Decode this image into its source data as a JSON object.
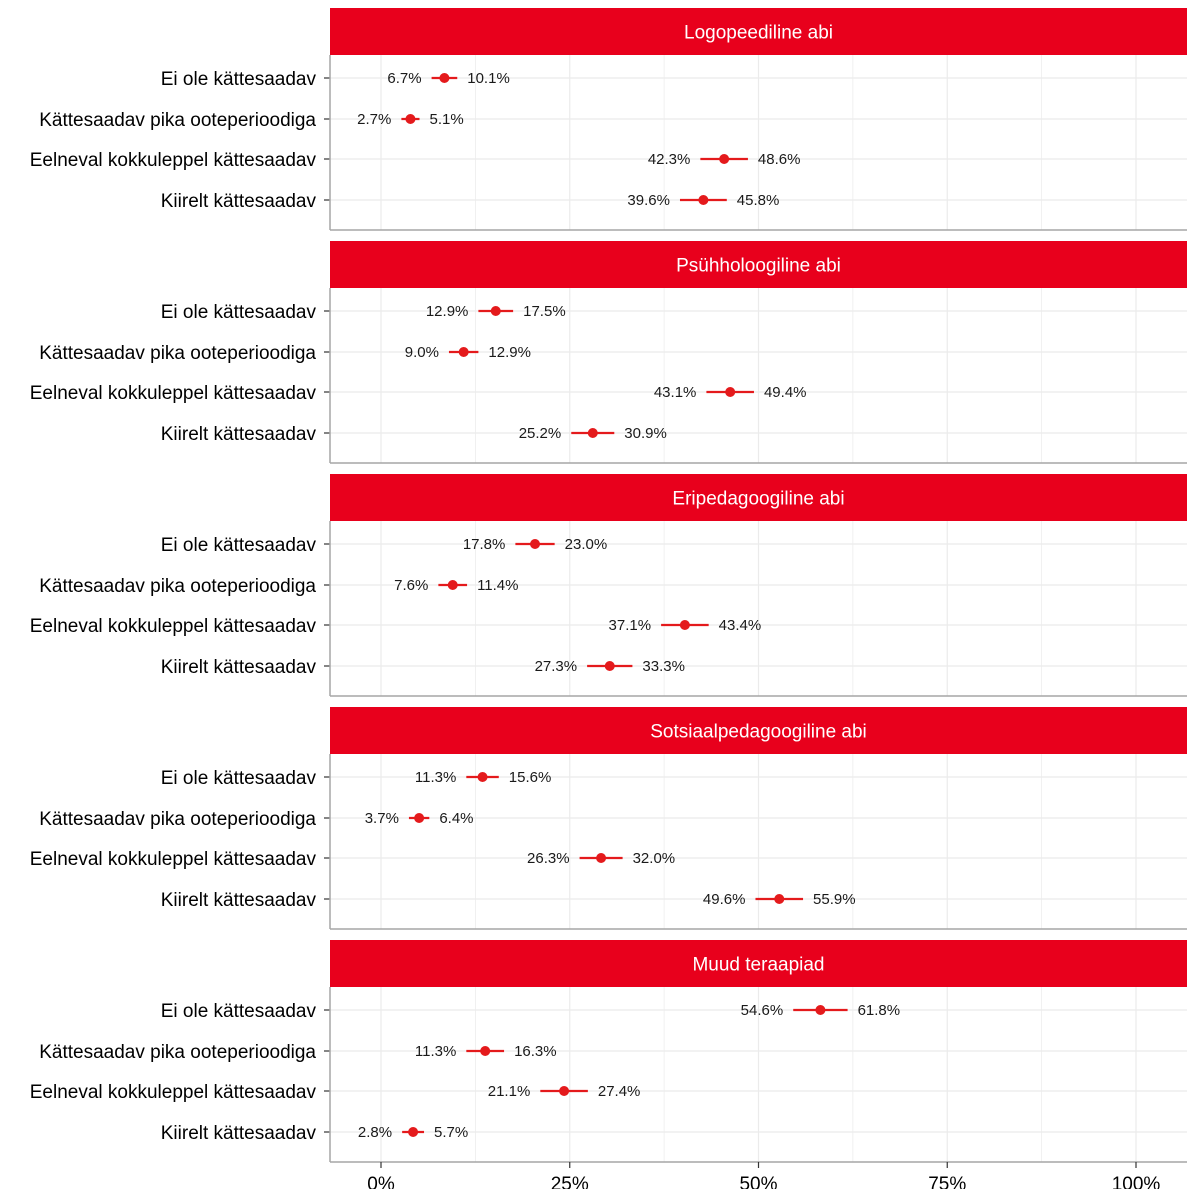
{
  "colors": {
    "strip": "#e8001c",
    "point": "#e41a1c",
    "grid": "#ebebeb",
    "panel_border": "#a6a6a6",
    "axis": "#333333"
  },
  "chart_data": {
    "type": "dot-interval",
    "categories": [
      "Ei ole kättesaadav",
      "Kättesaadav pika ooteperioodiga",
      "Eelneval kokkuleppel kättesaadav",
      "Kiirelt kättesaadav"
    ],
    "xlim": [
      0,
      100
    ],
    "xticks": [
      0,
      25,
      50,
      75,
      100
    ],
    "xtick_labels": [
      "0%",
      "25%",
      "50%",
      "75%",
      "100%"
    ],
    "grid": true,
    "panels": [
      {
        "title": "Logopeediline abi",
        "values": [
          {
            "low": 6.7,
            "high": 10.1,
            "low_label": "6.7%",
            "high_label": "10.1%"
          },
          {
            "low": 2.7,
            "high": 5.1,
            "low_label": "2.7%",
            "high_label": "5.1%"
          },
          {
            "low": 42.3,
            "high": 48.6,
            "low_label": "42.3%",
            "high_label": "48.6%"
          },
          {
            "low": 39.6,
            "high": 45.8,
            "low_label": "39.6%",
            "high_label": "45.8%"
          }
        ]
      },
      {
        "title": "Psühholoogiline abi",
        "values": [
          {
            "low": 12.9,
            "high": 17.5,
            "low_label": "12.9%",
            "high_label": "17.5%"
          },
          {
            "low": 9.0,
            "high": 12.9,
            "low_label": "9.0%",
            "high_label": "12.9%"
          },
          {
            "low": 43.1,
            "high": 49.4,
            "low_label": "43.1%",
            "high_label": "49.4%"
          },
          {
            "low": 25.2,
            "high": 30.9,
            "low_label": "25.2%",
            "high_label": "30.9%"
          }
        ]
      },
      {
        "title": "Eripedagoogiline abi",
        "values": [
          {
            "low": 17.8,
            "high": 23.0,
            "low_label": "17.8%",
            "high_label": "23.0%"
          },
          {
            "low": 7.6,
            "high": 11.4,
            "low_label": "7.6%",
            "high_label": "11.4%"
          },
          {
            "low": 37.1,
            "high": 43.4,
            "low_label": "37.1%",
            "high_label": "43.4%"
          },
          {
            "low": 27.3,
            "high": 33.3,
            "low_label": "27.3%",
            "high_label": "33.3%"
          }
        ]
      },
      {
        "title": "Sotsiaalpedagoogiline abi",
        "values": [
          {
            "low": 11.3,
            "high": 15.6,
            "low_label": "11.3%",
            "high_label": "15.6%"
          },
          {
            "low": 3.7,
            "high": 6.4,
            "low_label": "3.7%",
            "high_label": "6.4%"
          },
          {
            "low": 26.3,
            "high": 32.0,
            "low_label": "26.3%",
            "high_label": "32.0%"
          },
          {
            "low": 49.6,
            "high": 55.9,
            "low_label": "49.6%",
            "high_label": "55.9%"
          }
        ]
      },
      {
        "title": "Muud teraapiad",
        "values": [
          {
            "low": 54.6,
            "high": 61.8,
            "low_label": "54.6%",
            "high_label": "61.8%"
          },
          {
            "low": 11.3,
            "high": 16.3,
            "low_label": "11.3%",
            "high_label": "16.3%"
          },
          {
            "low": 21.1,
            "high": 27.4,
            "low_label": "21.1%",
            "high_label": "27.4%"
          },
          {
            "low": 2.8,
            "high": 5.7,
            "low_label": "2.8%",
            "high_label": "5.7%"
          }
        ]
      }
    ]
  }
}
